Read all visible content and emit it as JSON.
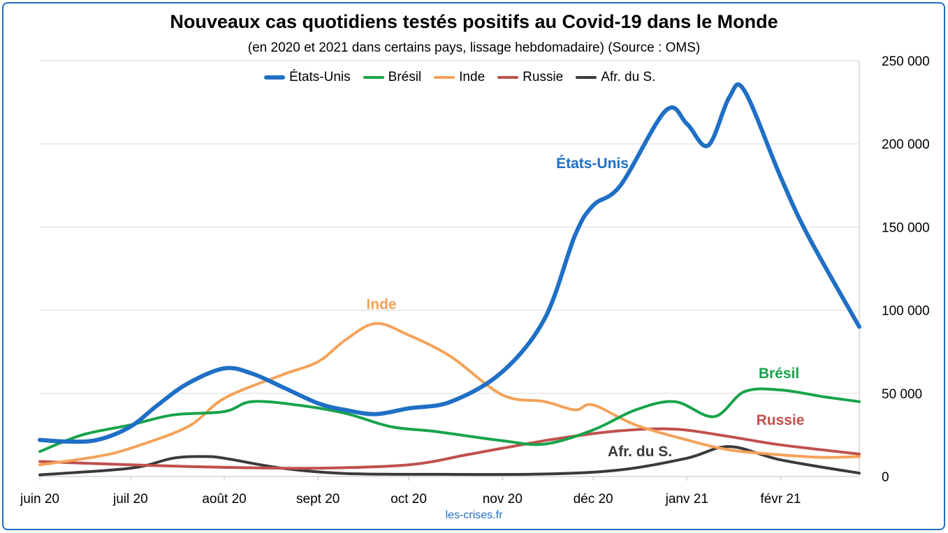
{
  "header": {
    "title": "Nouveaux cas quotidiens testés positifs au Covid-19 dans le Monde",
    "subtitle": "(en 2020 et 2021 dans certains pays, lissage hebdomadaire) (Source : OMS)"
  },
  "footer": {
    "source": "les-crises.fr"
  },
  "chart_data": {
    "type": "line",
    "title": "Nouveaux cas quotidiens testés positifs au Covid-19 dans le Monde",
    "subtitle": "(en 2020 et 2021 dans certains pays, lissage hebdomadaire) (Source : OMS)",
    "x_start": "2020-06-01",
    "x_end": "2021-02-27",
    "x_tick_dates": [
      "2020-06-01",
      "2020-07-01",
      "2020-08-01",
      "2020-09-01",
      "2020-10-01",
      "2020-11-01",
      "2020-12-01",
      "2021-01-01",
      "2021-02-01"
    ],
    "x_tick_labels": [
      "juin 20",
      "juil 20",
      "août 20",
      "sept 20",
      "oct 20",
      "nov 20",
      "déc 20",
      "janv 21",
      "févr 21"
    ],
    "ylim": [
      0,
      250000
    ],
    "y_ticks": [
      0,
      50000,
      100000,
      150000,
      200000,
      250000
    ],
    "y_tick_labels": [
      "0",
      "50 000",
      "100 000",
      "150 000",
      "200 000",
      "250 000"
    ],
    "y_axis_side": "right",
    "grid": true,
    "legend_position": "top",
    "series": [
      {
        "name": "États-Unis",
        "label": "États-Unis",
        "color": "#1f6fc5",
        "points": [
          [
            "2020-06-01",
            22000
          ],
          [
            "2020-06-10",
            21000
          ],
          [
            "2020-06-20",
            22000
          ],
          [
            "2020-07-01",
            30000
          ],
          [
            "2020-07-10",
            43000
          ],
          [
            "2020-07-20",
            56000
          ],
          [
            "2020-08-01",
            65000
          ],
          [
            "2020-08-10",
            62000
          ],
          [
            "2020-08-20",
            54000
          ],
          [
            "2020-09-01",
            44000
          ],
          [
            "2020-09-10",
            40000
          ],
          [
            "2020-09-20",
            37500
          ],
          [
            "2020-10-01",
            41000
          ],
          [
            "2020-10-15",
            45000
          ],
          [
            "2020-11-01",
            63000
          ],
          [
            "2020-11-15",
            95000
          ],
          [
            "2020-11-25",
            145000
          ],
          [
            "2020-12-01",
            163000
          ],
          [
            "2020-12-10",
            175000
          ],
          [
            "2020-12-25",
            220000
          ],
          [
            "2021-01-01",
            212000
          ],
          [
            "2021-01-08",
            199000
          ],
          [
            "2021-01-15",
            228000
          ],
          [
            "2021-01-20",
            232000
          ],
          [
            "2021-02-01",
            180000
          ],
          [
            "2021-02-10",
            145000
          ],
          [
            "2021-02-27",
            90000
          ]
        ]
      },
      {
        "name": "Brésil",
        "label": "Brésil",
        "color": "#17a34a",
        "points": [
          [
            "2020-06-01",
            15000
          ],
          [
            "2020-06-15",
            25000
          ],
          [
            "2020-07-01",
            31000
          ],
          [
            "2020-07-15",
            37000
          ],
          [
            "2020-08-01",
            39000
          ],
          [
            "2020-08-10",
            45000
          ],
          [
            "2020-08-25",
            43000
          ],
          [
            "2020-09-10",
            38000
          ],
          [
            "2020-09-25",
            30000
          ],
          [
            "2020-10-10",
            27000
          ],
          [
            "2020-11-01",
            21500
          ],
          [
            "2020-11-15",
            19500
          ],
          [
            "2020-12-01",
            28000
          ],
          [
            "2020-12-15",
            40000
          ],
          [
            "2020-12-28",
            45000
          ],
          [
            "2021-01-10",
            36000
          ],
          [
            "2021-01-20",
            51000
          ],
          [
            "2021-02-01",
            52000
          ],
          [
            "2021-02-15",
            48000
          ],
          [
            "2021-02-27",
            45000
          ]
        ]
      },
      {
        "name": "Inde",
        "label": "Inde",
        "color": "#f4a259",
        "points": [
          [
            "2020-06-01",
            7000
          ],
          [
            "2020-06-20",
            12000
          ],
          [
            "2020-07-01",
            17000
          ],
          [
            "2020-07-20",
            30000
          ],
          [
            "2020-08-01",
            47000
          ],
          [
            "2020-08-20",
            61000
          ],
          [
            "2020-09-01",
            69000
          ],
          [
            "2020-09-10",
            82000
          ],
          [
            "2020-09-20",
            92000
          ],
          [
            "2020-10-01",
            85000
          ],
          [
            "2020-10-15",
            72000
          ],
          [
            "2020-11-01",
            49000
          ],
          [
            "2020-11-15",
            45000
          ],
          [
            "2020-11-25",
            40000
          ],
          [
            "2020-12-01",
            43000
          ],
          [
            "2020-12-15",
            31000
          ],
          [
            "2021-01-01",
            22000
          ],
          [
            "2021-01-15",
            16000
          ],
          [
            "2021-02-01",
            13000
          ],
          [
            "2021-02-15",
            11500
          ],
          [
            "2021-02-27",
            12000
          ]
        ]
      },
      {
        "name": "Russie",
        "label": "Russie",
        "color": "#c0504d",
        "points": [
          [
            "2020-06-01",
            9000
          ],
          [
            "2020-07-01",
            7000
          ],
          [
            "2020-08-01",
            5500
          ],
          [
            "2020-09-01",
            5000
          ],
          [
            "2020-10-01",
            7000
          ],
          [
            "2020-10-20",
            13000
          ],
          [
            "2020-11-01",
            17000
          ],
          [
            "2020-11-20",
            23000
          ],
          [
            "2020-12-10",
            27500
          ],
          [
            "2020-12-28",
            28500
          ],
          [
            "2021-01-15",
            24000
          ],
          [
            "2021-02-01",
            19000
          ],
          [
            "2021-02-27",
            13500
          ]
        ]
      },
      {
        "name": "Afr. du S.",
        "label": "Afr. du S.",
        "color": "#3a3a3a",
        "points": [
          [
            "2020-06-01",
            1000
          ],
          [
            "2020-07-01",
            5000
          ],
          [
            "2020-07-15",
            11000
          ],
          [
            "2020-07-25",
            12000
          ],
          [
            "2020-08-01",
            11000
          ],
          [
            "2020-08-20",
            5000
          ],
          [
            "2020-09-10",
            1800
          ],
          [
            "2020-10-10",
            1300
          ],
          [
            "2020-11-15",
            1500
          ],
          [
            "2020-12-10",
            4000
          ],
          [
            "2021-01-01",
            11000
          ],
          [
            "2021-01-15",
            18000
          ],
          [
            "2021-02-01",
            10000
          ],
          [
            "2021-02-27",
            2000
          ]
        ]
      }
    ]
  }
}
